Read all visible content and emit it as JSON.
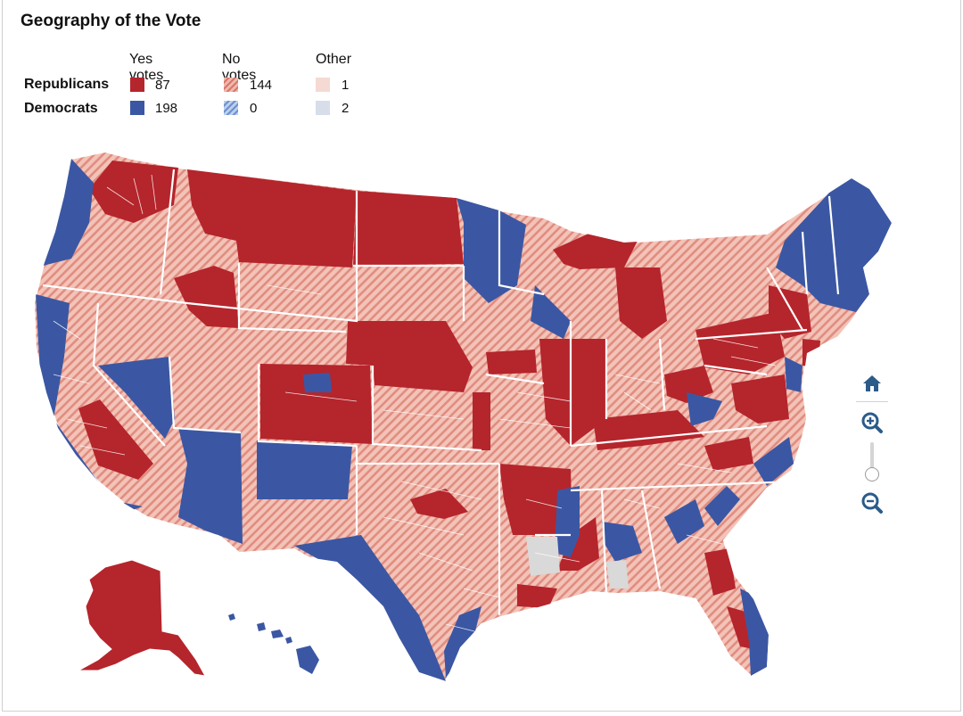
{
  "title": "Geography of the Vote",
  "legend": {
    "columns": [
      "Yes votes",
      "No votes",
      "Other"
    ],
    "rows": [
      {
        "label": "Republicans",
        "yes": "87",
        "no": "144",
        "other": "1"
      },
      {
        "label": "Democrats",
        "yes": "198",
        "no": "0",
        "other": "2"
      }
    ]
  },
  "colors": {
    "republican_yes": "#b5252c",
    "democrat_yes": "#3b57a3",
    "republican_no": "#e8a294",
    "democrat_no": "#9fb6e0",
    "republican_other": "#f5d9d3",
    "democrat_other": "#d7dde9",
    "no_data": "#d9d9d9"
  },
  "controls": {
    "home": "home-icon",
    "zoom_in": "zoom-in-icon",
    "zoom_out": "zoom-out-icon"
  }
}
